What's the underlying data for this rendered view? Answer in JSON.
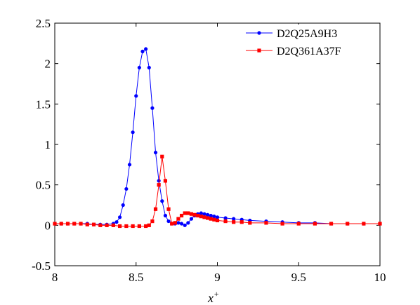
{
  "chart_data": {
    "type": "line",
    "xlabel": "x",
    "xlabel_superscript": "+",
    "xlim": [
      8,
      10
    ],
    "ylim": [
      -0.5,
      2.5
    ],
    "x_ticks": [
      8,
      8.5,
      9,
      9.5,
      10
    ],
    "y_ticks": [
      -0.5,
      0,
      0.5,
      1,
      1.5,
      2,
      2.5
    ],
    "x_tick_labels": [
      "8",
      "8.5",
      "9",
      "9.5",
      "10"
    ],
    "y_tick_labels": [
      "-0.5",
      "0",
      "0.5",
      "1",
      "1.5",
      "2",
      "2.5"
    ],
    "grid": false,
    "legend_position": "top-right",
    "series": [
      {
        "name": "D2Q25A9H3",
        "color": "#0000ff",
        "marker": "circle",
        "x": [
          8.0,
          8.04,
          8.08,
          8.12,
          8.16,
          8.2,
          8.24,
          8.28,
          8.32,
          8.36,
          8.38,
          8.4,
          8.42,
          8.44,
          8.46,
          8.48,
          8.5,
          8.52,
          8.54,
          8.56,
          8.58,
          8.6,
          8.62,
          8.64,
          8.66,
          8.68,
          8.7,
          8.72,
          8.74,
          8.76,
          8.78,
          8.8,
          8.82,
          8.84,
          8.86,
          8.88,
          8.9,
          8.92,
          8.94,
          8.96,
          8.98,
          9.0,
          9.05,
          9.1,
          9.15,
          9.2,
          9.3,
          9.4,
          9.5,
          9.6,
          9.7,
          9.8,
          9.9,
          10.0
        ],
        "y": [
          0.02,
          0.02,
          0.02,
          0.02,
          0.02,
          0.02,
          0.01,
          0.01,
          0.01,
          0.02,
          0.04,
          0.1,
          0.25,
          0.45,
          0.75,
          1.15,
          1.6,
          1.95,
          2.15,
          2.18,
          1.95,
          1.45,
          0.9,
          0.55,
          0.3,
          0.12,
          0.05,
          0.02,
          0.02,
          0.03,
          0.02,
          0.0,
          0.03,
          0.08,
          0.12,
          0.14,
          0.15,
          0.14,
          0.13,
          0.12,
          0.11,
          0.1,
          0.09,
          0.08,
          0.07,
          0.06,
          0.05,
          0.04,
          0.03,
          0.03,
          0.02,
          0.02,
          0.02,
          0.02
        ]
      },
      {
        "name": "D2Q361A37F",
        "color": "#ff0000",
        "marker": "square",
        "x": [
          8.0,
          8.04,
          8.08,
          8.12,
          8.16,
          8.2,
          8.24,
          8.28,
          8.32,
          8.36,
          8.4,
          8.44,
          8.48,
          8.52,
          8.56,
          8.58,
          8.6,
          8.62,
          8.64,
          8.66,
          8.68,
          8.7,
          8.72,
          8.74,
          8.76,
          8.78,
          8.8,
          8.82,
          8.84,
          8.86,
          8.88,
          8.9,
          8.92,
          8.94,
          8.96,
          8.98,
          9.0,
          9.05,
          9.1,
          9.15,
          9.2,
          9.3,
          9.4,
          9.5,
          9.6,
          9.7,
          9.8,
          9.9,
          10.0
        ],
        "y": [
          0.02,
          0.02,
          0.02,
          0.02,
          0.02,
          0.01,
          0.01,
          0.0,
          0.0,
          0.0,
          -0.01,
          -0.01,
          -0.01,
          -0.01,
          -0.01,
          0.0,
          0.05,
          0.2,
          0.5,
          0.85,
          0.55,
          0.2,
          0.02,
          0.03,
          0.08,
          0.12,
          0.15,
          0.15,
          0.14,
          0.13,
          0.12,
          0.11,
          0.1,
          0.09,
          0.08,
          0.07,
          0.06,
          0.05,
          0.04,
          0.04,
          0.03,
          0.03,
          0.02,
          0.02,
          0.02,
          0.02,
          0.02,
          0.02,
          0.02
        ]
      }
    ]
  }
}
